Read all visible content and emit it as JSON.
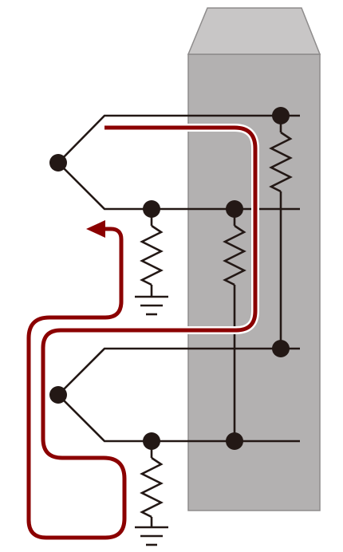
{
  "colors": {
    "background": "#ffffff",
    "panel_body": "#b3b1b1",
    "panel_top": "#c8c6c6",
    "panel_edge": "#8e8c8c",
    "wire": "#231815",
    "current_path": "#8b0000",
    "current_path_outline": "#ffffff"
  },
  "icons": [
    "resistor-icon",
    "ground-icon",
    "junction-node",
    "arrow-head-icon"
  ],
  "labels": []
}
